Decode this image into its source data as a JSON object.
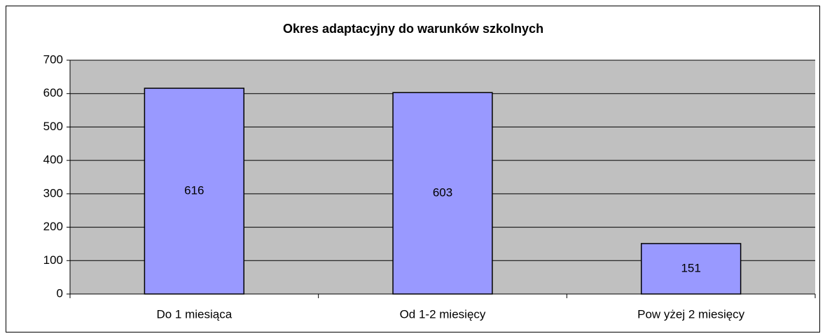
{
  "chart_data": {
    "type": "bar",
    "title": "Okres adaptacyjny do warunków szkolnych",
    "categories": [
      "Do 1 miesiąca",
      "Od 1-2 miesięcy",
      "Pow yżej 2 miesięcy"
    ],
    "values": [
      616,
      603,
      151
    ],
    "color": "#9999ff",
    "ylim": [
      0,
      700
    ],
    "yticks": [
      0,
      100,
      200,
      300,
      400,
      500,
      600,
      700
    ],
    "grid": true
  }
}
